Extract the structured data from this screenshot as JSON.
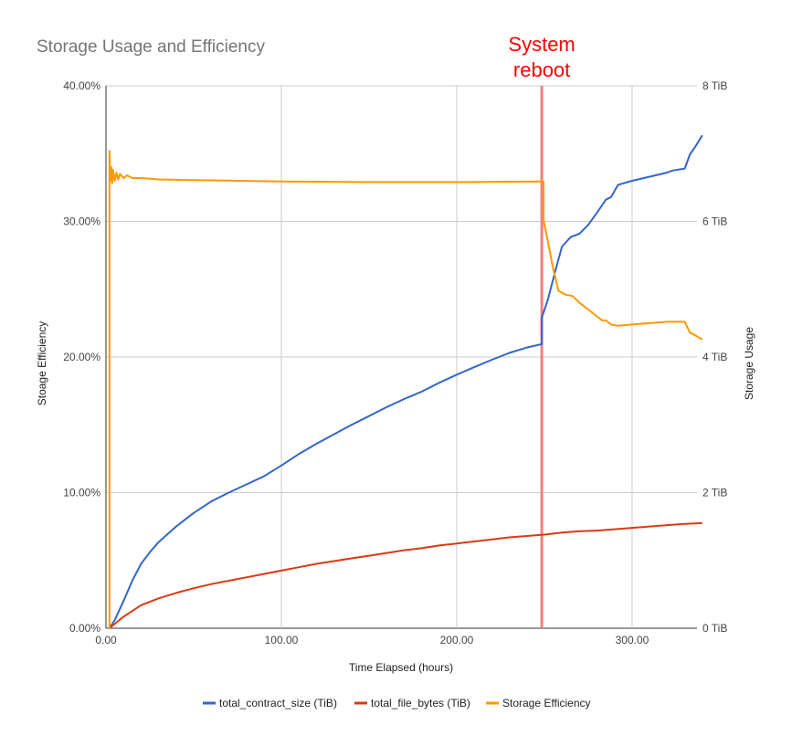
{
  "chart_data": {
    "type": "line",
    "title": "Storage Usage and Efficiency",
    "xlabel": "Time Elapsed (hours)",
    "ylabel_left": "Stoage Efficiency",
    "ylabel_right": "Storage Usage",
    "xlim": [
      0,
      337
    ],
    "ylim_left": [
      0,
      40
    ],
    "ylim_right": [
      0,
      8
    ],
    "x_ticks": [
      0,
      100,
      200,
      300
    ],
    "x_tick_labels": [
      "0.00",
      "100.00",
      "200.00",
      "300.00"
    ],
    "y_left_ticks": [
      0,
      10,
      20,
      30,
      40
    ],
    "y_left_tick_labels": [
      "0.00%",
      "10.00%",
      "20.00%",
      "30.00%",
      "40.00%"
    ],
    "y_right_ticks": [
      0,
      2,
      4,
      6,
      8
    ],
    "y_right_tick_labels": [
      "0 TiB",
      "2 TiB",
      "4 TiB",
      "6 TiB",
      "8 TiB"
    ],
    "grid": true,
    "legend_position": "bottom",
    "annotations": [
      {
        "text_lines": [
          "System",
          "reboot"
        ],
        "x": 248.5,
        "color": "#f08080",
        "text_color": "#ff0000"
      }
    ],
    "series": [
      {
        "name": "total_contract_size (TiB)",
        "axis": "right",
        "color": "#3366cc",
        "points": [
          [
            2,
            0
          ],
          [
            5,
            0.12
          ],
          [
            10,
            0.4
          ],
          [
            15,
            0.7
          ],
          [
            20,
            0.95
          ],
          [
            25,
            1.12
          ],
          [
            30,
            1.27
          ],
          [
            40,
            1.5
          ],
          [
            50,
            1.7
          ],
          [
            60,
            1.87
          ],
          [
            70,
            2.0
          ],
          [
            80,
            2.12
          ],
          [
            90,
            2.24
          ],
          [
            100,
            2.4
          ],
          [
            110,
            2.57
          ],
          [
            120,
            2.72
          ],
          [
            130,
            2.86
          ],
          [
            140,
            3.0
          ],
          [
            150,
            3.13
          ],
          [
            160,
            3.26
          ],
          [
            170,
            3.38
          ],
          [
            180,
            3.49
          ],
          [
            190,
            3.62
          ],
          [
            200,
            3.74
          ],
          [
            210,
            3.85
          ],
          [
            220,
            3.96
          ],
          [
            230,
            4.06
          ],
          [
            240,
            4.14
          ],
          [
            248.5,
            4.19
          ],
          [
            248.5,
            4.58
          ],
          [
            252,
            4.85
          ],
          [
            256,
            5.25
          ],
          [
            260,
            5.63
          ],
          [
            265,
            5.77
          ],
          [
            270,
            5.82
          ],
          [
            275,
            5.95
          ],
          [
            280,
            6.13
          ],
          [
            285,
            6.32
          ],
          [
            288,
            6.36
          ],
          [
            292,
            6.54
          ],
          [
            300,
            6.6
          ],
          [
            310,
            6.66
          ],
          [
            320,
            6.72
          ],
          [
            323,
            6.75
          ],
          [
            330,
            6.78
          ],
          [
            333,
            6.99
          ],
          [
            336,
            7.1
          ],
          [
            340,
            7.27
          ]
        ]
      },
      {
        "name": "total_file_bytes (TiB)",
        "axis": "right",
        "color": "#dc3912",
        "points": [
          [
            2,
            0
          ],
          [
            10,
            0.17
          ],
          [
            20,
            0.34
          ],
          [
            30,
            0.44
          ],
          [
            40,
            0.52
          ],
          [
            50,
            0.59
          ],
          [
            60,
            0.65
          ],
          [
            70,
            0.7
          ],
          [
            80,
            0.75
          ],
          [
            90,
            0.8
          ],
          [
            100,
            0.85
          ],
          [
            110,
            0.9
          ],
          [
            120,
            0.95
          ],
          [
            130,
            0.99
          ],
          [
            140,
            1.03
          ],
          [
            150,
            1.07
          ],
          [
            160,
            1.11
          ],
          [
            170,
            1.15
          ],
          [
            180,
            1.18
          ],
          [
            190,
            1.22
          ],
          [
            200,
            1.25
          ],
          [
            210,
            1.28
          ],
          [
            220,
            1.31
          ],
          [
            230,
            1.34
          ],
          [
            240,
            1.36
          ],
          [
            250,
            1.38
          ],
          [
            260,
            1.41
          ],
          [
            270,
            1.43
          ],
          [
            280,
            1.44
          ],
          [
            290,
            1.46
          ],
          [
            300,
            1.48
          ],
          [
            310,
            1.5
          ],
          [
            320,
            1.52
          ],
          [
            330,
            1.54
          ],
          [
            340,
            1.55
          ]
        ]
      },
      {
        "name": "Storage Efficiency",
        "axis": "left",
        "color": "#ff9900",
        "points": [
          [
            2,
            0
          ],
          [
            2,
            35.2
          ],
          [
            2.5,
            33
          ],
          [
            3,
            34
          ],
          [
            3.5,
            32.8
          ],
          [
            4,
            33.8
          ],
          [
            5,
            33
          ],
          [
            6,
            33.6
          ],
          [
            7,
            33.1
          ],
          [
            8,
            33.5
          ],
          [
            10,
            33.2
          ],
          [
            12,
            33.4
          ],
          [
            15,
            33.2
          ],
          [
            20,
            33.2
          ],
          [
            30,
            33.1
          ],
          [
            50,
            33.05
          ],
          [
            100,
            32.95
          ],
          [
            150,
            32.9
          ],
          [
            200,
            32.9
          ],
          [
            248.5,
            32.95
          ],
          [
            249.5,
            32.95
          ],
          [
            249.5,
            30.1
          ],
          [
            252,
            28.5
          ],
          [
            255,
            26.5
          ],
          [
            258,
            24.9
          ],
          [
            262,
            24.6
          ],
          [
            266,
            24.5
          ],
          [
            270,
            24.0
          ],
          [
            275,
            23.5
          ],
          [
            280,
            23.0
          ],
          [
            283,
            22.7
          ],
          [
            285,
            22.7
          ],
          [
            288,
            22.4
          ],
          [
            292,
            22.3
          ],
          [
            300,
            22.4
          ],
          [
            310,
            22.5
          ],
          [
            320,
            22.6
          ],
          [
            325,
            22.6
          ],
          [
            330,
            22.6
          ],
          [
            333,
            21.8
          ],
          [
            336,
            21.6
          ],
          [
            340,
            21.3
          ]
        ]
      }
    ]
  }
}
